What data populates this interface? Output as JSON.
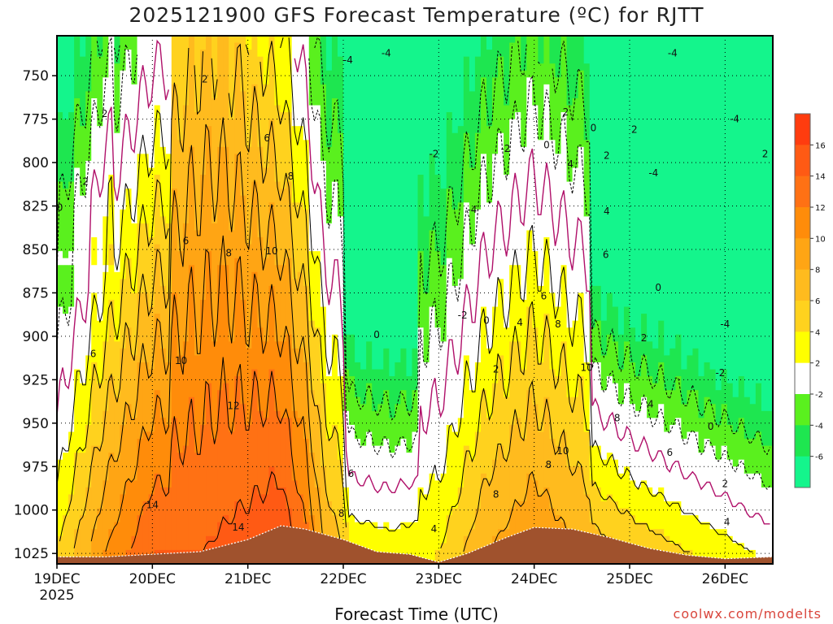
{
  "page": {
    "title": "2025121900 GFS Forecast Temperature (ºC) for RJTT",
    "xlabel": "Forecast Time (UTC)",
    "credit": "coolwx.com/modelts"
  },
  "chart_data": {
    "type": "heatmap",
    "title": "2025121900 GFS Forecast Temperature (ºC) for RJTT",
    "xlabel": "Forecast Time (UTC)",
    "ylabel": "",
    "x_ticks": [
      "19DEC",
      "20DEC",
      "21DEC",
      "22DEC",
      "23DEC",
      "24DEC",
      "25DEC",
      "26DEC"
    ],
    "x_tick_year": "2025",
    "x_range_days": [
      0,
      7.5
    ],
    "y_ticks": [
      750,
      775,
      800,
      825,
      850,
      875,
      900,
      925,
      950,
      975,
      1000,
      1025
    ],
    "y_range_hpa": [
      727,
      1031
    ],
    "y_reversed": true,
    "grid": true,
    "colorbar": {
      "position": "right",
      "ticks": [
        16,
        14,
        12,
        10,
        8,
        6,
        4,
        2,
        -2,
        -4,
        -6
      ],
      "bins": [
        {
          "min": 16,
          "max": 18,
          "color": "#ff3c0f"
        },
        {
          "min": 14,
          "max": 16,
          "color": "#ff5a14"
        },
        {
          "min": 12,
          "max": 14,
          "color": "#ff7114"
        },
        {
          "min": 10,
          "max": 12,
          "color": "#ff8c0a"
        },
        {
          "min": 8,
          "max": 10,
          "color": "#ffa514"
        },
        {
          "min": 6,
          "max": 8,
          "color": "#ffbb1e"
        },
        {
          "min": 4,
          "max": 6,
          "color": "#ffd21e"
        },
        {
          "min": 2,
          "max": 4,
          "color": "#ffff00"
        },
        {
          "min": -2,
          "max": 2,
          "color": "#ffffff"
        },
        {
          "min": -4,
          "max": -2,
          "color": "#5af01e"
        },
        {
          "min": -6,
          "max": -4,
          "color": "#1ee650"
        },
        {
          "min": -8,
          "max": -6,
          "color": "#14f58c"
        }
      ]
    },
    "surface_color": "#a0522d",
    "surface_pressure_hpa": [
      [
        0,
        1027
      ],
      [
        0.5,
        1027
      ],
      [
        1.0,
        1025.5
      ],
      [
        1.5,
        1024
      ],
      [
        2.0,
        1017
      ],
      [
        2.35,
        1009
      ],
      [
        2.6,
        1011
      ],
      [
        3.0,
        1017
      ],
      [
        3.35,
        1024
      ],
      [
        3.7,
        1025.5
      ],
      [
        4.0,
        1030
      ],
      [
        4.3,
        1025
      ],
      [
        4.7,
        1016
      ],
      [
        5.0,
        1010
      ],
      [
        5.4,
        1011
      ],
      [
        5.8,
        1016
      ],
      [
        6.2,
        1022
      ],
      [
        6.6,
        1026
      ],
      [
        7.0,
        1028
      ],
      [
        7.5,
        1027
      ]
    ],
    "temperature_ridges": [
      {
        "note": "warm column 19-22DEC",
        "t_days": [
          0,
          0.5,
          1.0,
          1.5,
          2.0,
          2.35,
          2.6,
          2.8,
          3.0
        ],
        "surface_temp_c": [
          4,
          10,
          14,
          14,
          15,
          16,
          13,
          8,
          6
        ]
      },
      {
        "note": "warm column 23-25DEC",
        "t_days": [
          4.0,
          4.5,
          5.0,
          5.5,
          6.0
        ],
        "surface_temp_c": [
          4,
          8,
          10,
          8,
          6
        ]
      }
    ],
    "contour_labels": [
      {
        "value": "2",
        "x_day": 1.55,
        "y_hpa": 752
      },
      {
        "value": "2",
        "x_day": 0.5,
        "y_hpa": 772
      },
      {
        "value": "2",
        "x_day": 0.3,
        "y_hpa": 811
      },
      {
        "value": "0",
        "x_day": 0.03,
        "y_hpa": 826
      },
      {
        "value": "6",
        "x_day": 2.2,
        "y_hpa": 786
      },
      {
        "value": "8",
        "x_day": 2.45,
        "y_hpa": 808
      },
      {
        "value": "6",
        "x_day": 1.35,
        "y_hpa": 845
      },
      {
        "value": "8",
        "x_day": 1.8,
        "y_hpa": 852
      },
      {
        "value": "10",
        "x_day": 2.25,
        "y_hpa": 851
      },
      {
        "value": "6",
        "x_day": 0.38,
        "y_hpa": 910
      },
      {
        "value": "10",
        "x_day": 1.3,
        "y_hpa": 914
      },
      {
        "value": "12",
        "x_day": 1.85,
        "y_hpa": 940
      },
      {
        "value": "14",
        "x_day": 1.0,
        "y_hpa": 997
      },
      {
        "value": "14",
        "x_day": 1.9,
        "y_hpa": 1010
      },
      {
        "value": "6",
        "x_day": 3.08,
        "y_hpa": 979
      },
      {
        "value": "8",
        "x_day": 2.98,
        "y_hpa": 1002
      },
      {
        "value": "4",
        "x_day": 3.95,
        "y_hpa": 1011
      },
      {
        "value": "8",
        "x_day": 4.6,
        "y_hpa": 991
      },
      {
        "value": "-4",
        "x_day": 3.45,
        "y_hpa": 737
      },
      {
        "value": "-4",
        "x_day": 3.05,
        "y_hpa": 741
      },
      {
        "value": "-2",
        "x_day": 3.95,
        "y_hpa": 795
      },
      {
        "value": "-2",
        "x_day": 4.7,
        "y_hpa": 792
      },
      {
        "value": "0",
        "x_day": 5.13,
        "y_hpa": 790
      },
      {
        "value": "-4",
        "x_day": 4.35,
        "y_hpa": 827
      },
      {
        "value": "-2",
        "x_day": 4.25,
        "y_hpa": 888
      },
      {
        "value": "0",
        "x_day": 4.5,
        "y_hpa": 891
      },
      {
        "value": "0",
        "x_day": 3.35,
        "y_hpa": 899
      },
      {
        "value": "2",
        "x_day": 4.6,
        "y_hpa": 919
      },
      {
        "value": "4",
        "x_day": 4.85,
        "y_hpa": 892
      },
      {
        "value": "6",
        "x_day": 5.1,
        "y_hpa": 877
      },
      {
        "value": "8",
        "x_day": 5.25,
        "y_hpa": 893
      },
      {
        "value": "2",
        "x_day": 5.33,
        "y_hpa": 771
      },
      {
        "value": "4",
        "x_day": 5.38,
        "y_hpa": 801
      },
      {
        "value": "2",
        "x_day": 5.76,
        "y_hpa": 796
      },
      {
        "value": "4",
        "x_day": 5.76,
        "y_hpa": 828
      },
      {
        "value": "6",
        "x_day": 5.75,
        "y_hpa": 853
      },
      {
        "value": "10",
        "x_day": 5.55,
        "y_hpa": 918
      },
      {
        "value": "8",
        "x_day": 5.87,
        "y_hpa": 947
      },
      {
        "value": "10",
        "x_day": 5.3,
        "y_hpa": 966
      },
      {
        "value": "8",
        "x_day": 5.15,
        "y_hpa": 974
      },
      {
        "value": "0",
        "x_day": 5.62,
        "y_hpa": 780
      },
      {
        "value": "2",
        "x_day": 6.05,
        "y_hpa": 781
      },
      {
        "value": "-4",
        "x_day": 6.25,
        "y_hpa": 806
      },
      {
        "value": "0",
        "x_day": 6.3,
        "y_hpa": 872
      },
      {
        "value": "2",
        "x_day": 6.15,
        "y_hpa": 901
      },
      {
        "value": "4",
        "x_day": 6.22,
        "y_hpa": 939
      },
      {
        "value": "6",
        "x_day": 6.42,
        "y_hpa": 967
      },
      {
        "value": "-2",
        "x_day": 6.95,
        "y_hpa": 921
      },
      {
        "value": "0",
        "x_day": 6.85,
        "y_hpa": 952
      },
      {
        "value": "-4",
        "x_day": 6.45,
        "y_hpa": 737
      },
      {
        "value": "-4",
        "x_day": 7.1,
        "y_hpa": 775
      },
      {
        "value": "2",
        "x_day": 7.42,
        "y_hpa": 795
      },
      {
        "value": "-4",
        "x_day": 7.0,
        "y_hpa": 893
      },
      {
        "value": "2",
        "x_day": 7.0,
        "y_hpa": 985
      },
      {
        "value": "4",
        "x_day": 7.02,
        "y_hpa": 1007
      }
    ]
  }
}
